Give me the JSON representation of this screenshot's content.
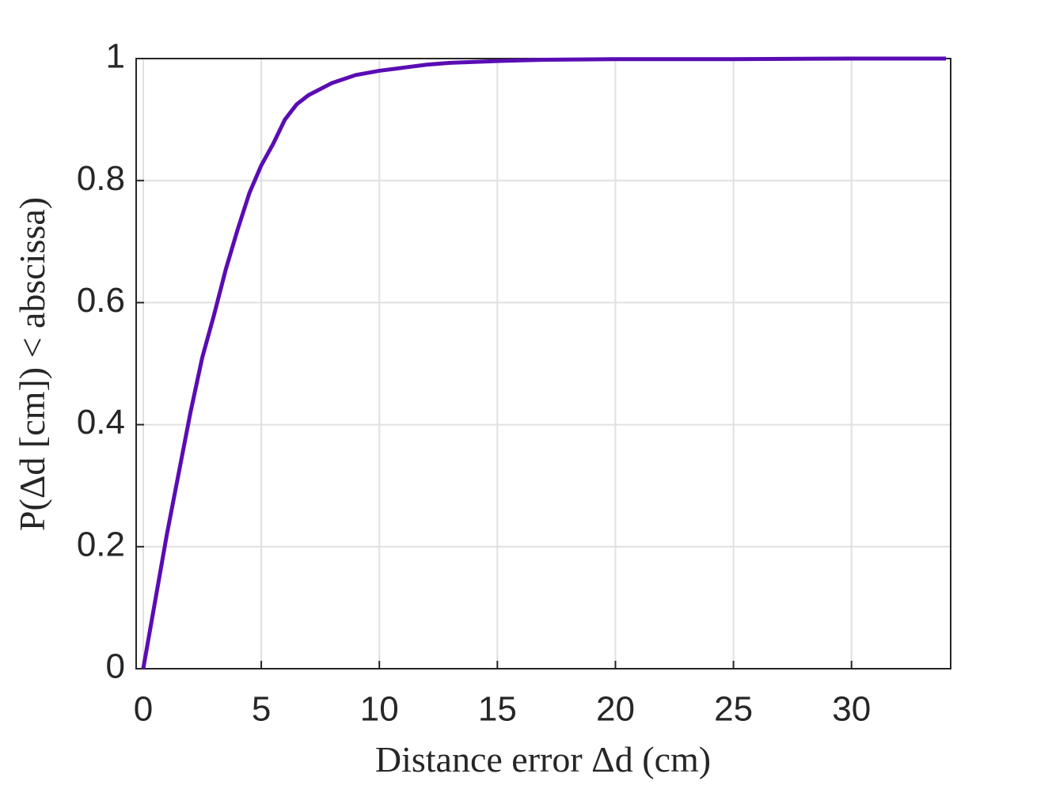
{
  "chart_data": {
    "type": "line",
    "xlabel": "Distance error Δd (cm)",
    "ylabel": "P(Δd [cm]) < abscissa)",
    "x": [
      0,
      0.5,
      1,
      1.5,
      2,
      2.5,
      3,
      3.5,
      4,
      4.5,
      5,
      5.5,
      6,
      6.5,
      7,
      8,
      9,
      10,
      11,
      12,
      13,
      15,
      17,
      20,
      25,
      30,
      34
    ],
    "series": [
      {
        "color": "#5a0cb4",
        "values": [
          0,
          0.11,
          0.22,
          0.32,
          0.42,
          0.51,
          0.58,
          0.655,
          0.72,
          0.78,
          0.825,
          0.86,
          0.9,
          0.925,
          0.94,
          0.96,
          0.973,
          0.98,
          0.985,
          0.99,
          0.993,
          0.996,
          0.998,
          0.999,
          0.999,
          1,
          1
        ]
      }
    ],
    "xlim": [
      -0.3,
      34.2
    ],
    "ylim": [
      0,
      1
    ],
    "xticks": [
      0,
      5,
      10,
      15,
      20,
      25,
      30
    ],
    "yticks": [
      0,
      0.2,
      0.4,
      0.6,
      0.8,
      1
    ],
    "grid": true
  }
}
